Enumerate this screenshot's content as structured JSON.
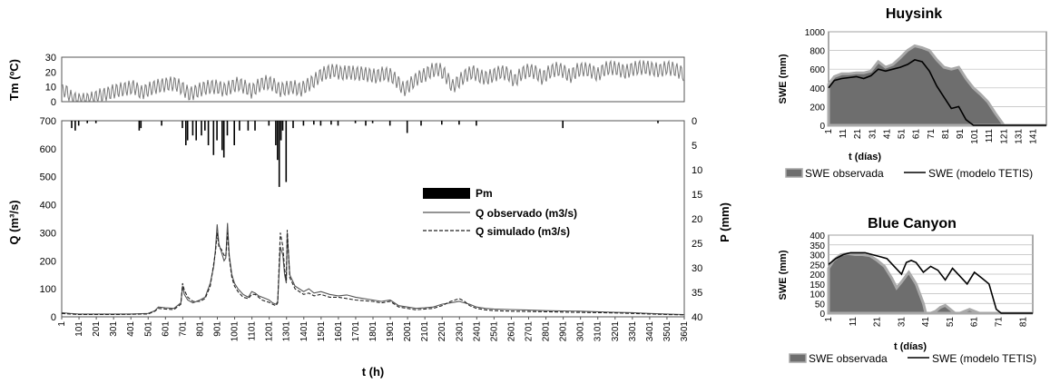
{
  "chart_data": [
    {
      "type": "line",
      "panel": "temperature",
      "ylabel": "Tm (ºC)",
      "ylim": [
        0,
        30
      ],
      "yticks": [
        "0",
        "10",
        "20",
        "30"
      ],
      "xlim": [
        1,
        3601
      ],
      "series": [
        {
          "style": "solid-gray",
          "x": [
            1,
            20,
            60,
            100,
            140,
            180,
            220,
            260,
            300,
            340,
            380,
            420,
            460,
            500,
            540,
            580,
            620,
            660,
            700,
            740,
            780,
            820,
            860,
            900,
            940,
            980,
            1020,
            1060,
            1100,
            1140,
            1180,
            1220,
            1260,
            1300,
            1340,
            1380,
            1420,
            1460,
            1500,
            1540,
            1580,
            1620,
            1660,
            1700,
            1740,
            1780,
            1820,
            1860,
            1900,
            1940,
            1980,
            2020,
            2060,
            2100,
            2140,
            2180,
            2220,
            2260,
            2300,
            2340,
            2380,
            2420,
            2460,
            2500,
            2540,
            2580,
            2620,
            2660,
            2700,
            2740,
            2780,
            2820,
            2860,
            2900,
            2940,
            2980,
            3020,
            3060,
            3100,
            3140,
            3180,
            3220,
            3260,
            3300,
            3340,
            3380,
            3420,
            3460,
            3500,
            3540,
            3580,
            3601
          ],
          "values": [
            6,
            8,
            2,
            1,
            1,
            2,
            4,
            5,
            7,
            8,
            9,
            10,
            6,
            8,
            10,
            11,
            12,
            12,
            9,
            5,
            7,
            9,
            10,
            10,
            8,
            10,
            12,
            10,
            7,
            11,
            13,
            12,
            8,
            9,
            10,
            8,
            11,
            14,
            18,
            20,
            21,
            19,
            20,
            19,
            19,
            18,
            17,
            19,
            18,
            14,
            8,
            12,
            16,
            18,
            21,
            22,
            18,
            10,
            14,
            18,
            20,
            17,
            16,
            18,
            20,
            19,
            14,
            19,
            21,
            20,
            16,
            20,
            22,
            21,
            17,
            21,
            22,
            21,
            18,
            22,
            23,
            22,
            20,
            22,
            23,
            23,
            22,
            21,
            23,
            22,
            20,
            18
          ],
          "amplitude": 5
        }
      ]
    },
    {
      "type": "line",
      "panel": "discharge",
      "xlabel": "t (h)",
      "ylabel": "Q (m³/s)",
      "y2label": "P (mm)",
      "ylim": [
        0,
        700
      ],
      "y2lim": [
        0,
        40
      ],
      "y2_inverted": true,
      "yticks": [
        "0",
        "100",
        "200",
        "300",
        "400",
        "500",
        "600",
        "700"
      ],
      "y2ticks": [
        "0",
        "5",
        "10",
        "15",
        "20",
        "25",
        "30",
        "35",
        "40"
      ],
      "xticks": [
        "1",
        "101",
        "201",
        "301",
        "401",
        "501",
        "601",
        "701",
        "801",
        "901",
        "1001",
        "1101",
        "1201",
        "1301",
        "1401",
        "1501",
        "1601",
        "1701",
        "1801",
        "1901",
        "2001",
        "2101",
        "2201",
        "2301",
        "2401",
        "2501",
        "2601",
        "2701",
        "2801",
        "2901",
        "3001",
        "3101",
        "3201",
        "3301",
        "3401",
        "3501",
        "3601"
      ],
      "legend": {
        "position": "center",
        "entries": [
          {
            "label": "Pm",
            "style": "bar"
          },
          {
            "label": "Q  observado (m3/s)",
            "style": "solid"
          },
          {
            "label": "Q  simulado (m3/s)",
            "style": "dashed"
          }
        ]
      },
      "series": [
        {
          "name": "Q  observado (m3/s)",
          "style": "solid",
          "x": [
            1,
            50,
            100,
            200,
            300,
            400,
            500,
            540,
            560,
            600,
            650,
            690,
            700,
            710,
            730,
            760,
            800,
            830,
            860,
            880,
            890,
            900,
            910,
            925,
            940,
            950,
            960,
            970,
            985,
            1000,
            1020,
            1050,
            1080,
            1100,
            1120,
            1140,
            1160,
            1180,
            1200,
            1220,
            1240,
            1250,
            1265,
            1280,
            1290,
            1300,
            1305,
            1320,
            1350,
            1400,
            1430,
            1460,
            1500,
            1550,
            1600,
            1650,
            1700,
            1800,
            1850,
            1900,
            1950,
            2000,
            2050,
            2100,
            2150,
            2200,
            2250,
            2300,
            2330,
            2360,
            2400,
            2450,
            2500,
            2600,
            2700,
            2800,
            2900,
            3000,
            3100,
            3200,
            3300,
            3400,
            3500,
            3600
          ],
          "values": [
            15,
            12,
            10,
            10,
            10,
            10,
            12,
            22,
            35,
            32,
            30,
            50,
            110,
            80,
            60,
            50,
            60,
            70,
            120,
            180,
            240,
            330,
            260,
            230,
            200,
            210,
            335,
            220,
            150,
            120,
            100,
            80,
            70,
            90,
            85,
            75,
            70,
            65,
            60,
            50,
            45,
            55,
            250,
            220,
            150,
            120,
            300,
            150,
            110,
            90,
            100,
            85,
            90,
            80,
            75,
            78,
            70,
            60,
            55,
            60,
            40,
            35,
            30,
            32,
            35,
            45,
            50,
            55,
            50,
            45,
            35,
            30,
            28,
            26,
            24,
            22,
            21,
            20,
            18,
            16,
            15,
            12,
            10,
            8
          ]
        },
        {
          "name": "Q  simulado (m3/s)",
          "style": "dashed",
          "x": [
            1,
            50,
            100,
            200,
            300,
            400,
            500,
            540,
            560,
            600,
            650,
            690,
            700,
            710,
            730,
            760,
            800,
            830,
            860,
            880,
            890,
            900,
            910,
            925,
            940,
            950,
            960,
            970,
            985,
            1000,
            1020,
            1050,
            1080,
            1100,
            1120,
            1140,
            1160,
            1180,
            1200,
            1220,
            1240,
            1250,
            1265,
            1280,
            1290,
            1300,
            1305,
            1320,
            1350,
            1400,
            1430,
            1460,
            1500,
            1550,
            1600,
            1650,
            1700,
            1800,
            1850,
            1900,
            1950,
            2000,
            2050,
            2100,
            2150,
            2200,
            2250,
            2300,
            2330,
            2360,
            2400,
            2450,
            2500,
            2600,
            2700,
            2800,
            2900,
            3000,
            3100,
            3200,
            3300,
            3400,
            3500,
            3600
          ],
          "values": [
            12,
            10,
            8,
            8,
            8,
            9,
            10,
            20,
            30,
            28,
            26,
            45,
            120,
            95,
            70,
            55,
            55,
            65,
            110,
            190,
            230,
            300,
            250,
            240,
            220,
            215,
            300,
            210,
            140,
            110,
            90,
            70,
            65,
            80,
            80,
            70,
            60,
            55,
            52,
            45,
            40,
            50,
            300,
            250,
            170,
            130,
            310,
            140,
            100,
            80,
            85,
            75,
            80,
            70,
            70,
            65,
            60,
            55,
            50,
            55,
            35,
            30,
            25,
            28,
            30,
            40,
            55,
            65,
            55,
            40,
            30,
            25,
            22,
            20,
            19,
            18,
            17,
            16,
            15,
            14,
            12,
            10,
            8,
            7
          ]
        }
      ],
      "precip": {
        "name": "Pm",
        "x": [
          60,
          80,
          100,
          150,
          200,
          450,
          460,
          580,
          700,
          720,
          730,
          760,
          780,
          810,
          830,
          850,
          880,
          900,
          930,
          940,
          960,
          1000,
          1030,
          1080,
          1120,
          1200,
          1240,
          1250,
          1260,
          1270,
          1280,
          1300,
          1340,
          1400,
          1460,
          1500,
          1560,
          1600,
          1700,
          1760,
          1800,
          1900,
          2000,
          2080,
          2200,
          2300,
          2400,
          2900,
          3450
        ],
        "values": [
          1.5,
          2,
          1,
          0.5,
          0.5,
          2,
          1.5,
          1,
          1.5,
          5,
          4,
          3,
          4,
          3,
          2,
          5,
          7,
          4,
          6,
          7.5,
          3,
          5,
          2,
          2,
          2,
          1,
          5,
          8,
          13.5,
          4,
          2,
          12.5,
          1.5,
          1,
          0.8,
          1,
          0.8,
          1,
          0.5,
          1,
          0.5,
          1,
          2.5,
          1,
          0.8,
          0.8,
          1,
          1.5,
          0.5
        ]
      }
    },
    {
      "type": "area",
      "title": "Huysink",
      "xlabel": "t  (días)",
      "ylabel": "SWE (mm)",
      "ylim": [
        0,
        1000
      ],
      "yticks": [
        "0",
        "200",
        "400",
        "600",
        "800",
        "1000"
      ],
      "xticks": [
        "1",
        "11",
        "21",
        "31",
        "41",
        "51",
        "61",
        "71",
        "81",
        "91",
        "101",
        "111",
        "121",
        "131",
        "141"
      ],
      "xlim": [
        1,
        150
      ],
      "legend": {
        "position": "bottom",
        "entries": [
          {
            "label": "SWE observada",
            "style": "area"
          },
          {
            "label": "SWE (modelo TETIS)",
            "style": "line"
          }
        ]
      },
      "series": [
        {
          "name": "SWE observada",
          "x": [
            1,
            5,
            10,
            15,
            20,
            25,
            30,
            35,
            40,
            45,
            50,
            55,
            60,
            65,
            70,
            75,
            80,
            85,
            90,
            95,
            100,
            105,
            110,
            115,
            120,
            121,
            150
          ],
          "values": [
            440,
            520,
            550,
            550,
            560,
            560,
            580,
            680,
            620,
            650,
            720,
            800,
            850,
            830,
            800,
            700,
            620,
            600,
            620,
            500,
            400,
            330,
            250,
            130,
            20,
            0,
            0
          ]
        },
        {
          "name": "SWE (modelo TETIS)",
          "x": [
            1,
            5,
            10,
            15,
            20,
            25,
            30,
            35,
            40,
            45,
            50,
            55,
            60,
            65,
            70,
            75,
            80,
            85,
            90,
            95,
            100,
            150
          ],
          "values": [
            400,
            480,
            500,
            510,
            520,
            500,
            530,
            600,
            580,
            600,
            620,
            650,
            700,
            680,
            580,
            420,
            300,
            180,
            200,
            60,
            0,
            0
          ]
        }
      ]
    },
    {
      "type": "area",
      "title": "Blue Canyon",
      "xlabel": "t (días)",
      "ylabel": "SWE (mm)",
      "ylim": [
        0,
        400
      ],
      "yticks": [
        "0",
        "50",
        "100",
        "150",
        "200",
        "250",
        "300",
        "350",
        "400"
      ],
      "xticks": [
        "1",
        "11",
        "21",
        "31",
        "41",
        "51",
        "61",
        "71",
        "81"
      ],
      "xlim": [
        1,
        85
      ],
      "legend": {
        "position": "bottom",
        "entries": [
          {
            "label": "SWE observada",
            "style": "area"
          },
          {
            "label": "SWE (modelo TETIS)",
            "style": "line"
          }
        ]
      },
      "series": [
        {
          "name": "SWE observada",
          "x": [
            1,
            3,
            6,
            9,
            12,
            15,
            18,
            21,
            24,
            27,
            29,
            31,
            34,
            37,
            40,
            41,
            43,
            45,
            47,
            49,
            51,
            53,
            55,
            57,
            59,
            61,
            63,
            85
          ],
          "values": [
            230,
            270,
            300,
            305,
            300,
            300,
            295,
            270,
            240,
            180,
            130,
            160,
            210,
            150,
            50,
            0,
            0,
            10,
            30,
            40,
            20,
            0,
            0,
            10,
            20,
            10,
            0,
            0
          ]
        },
        {
          "name": "SWE (modelo TETIS)",
          "x": [
            1,
            4,
            7,
            10,
            13,
            16,
            19,
            22,
            25,
            28,
            31,
            33,
            35,
            37,
            40,
            43,
            46,
            49,
            52,
            55,
            58,
            61,
            64,
            67,
            70,
            72,
            85
          ],
          "values": [
            250,
            280,
            300,
            310,
            310,
            310,
            300,
            290,
            280,
            240,
            200,
            260,
            270,
            260,
            210,
            240,
            220,
            170,
            230,
            190,
            150,
            210,
            180,
            150,
            20,
            0,
            0
          ]
        }
      ]
    }
  ],
  "colors": {
    "obs_area": "#6e6e6e",
    "obs_area_top": "#a9a9a9",
    "model_line": "#000000",
    "q_obs": "#555555",
    "q_sim": "#222222",
    "temp": "#777777",
    "precip": "#000000",
    "frame": "#555555"
  }
}
